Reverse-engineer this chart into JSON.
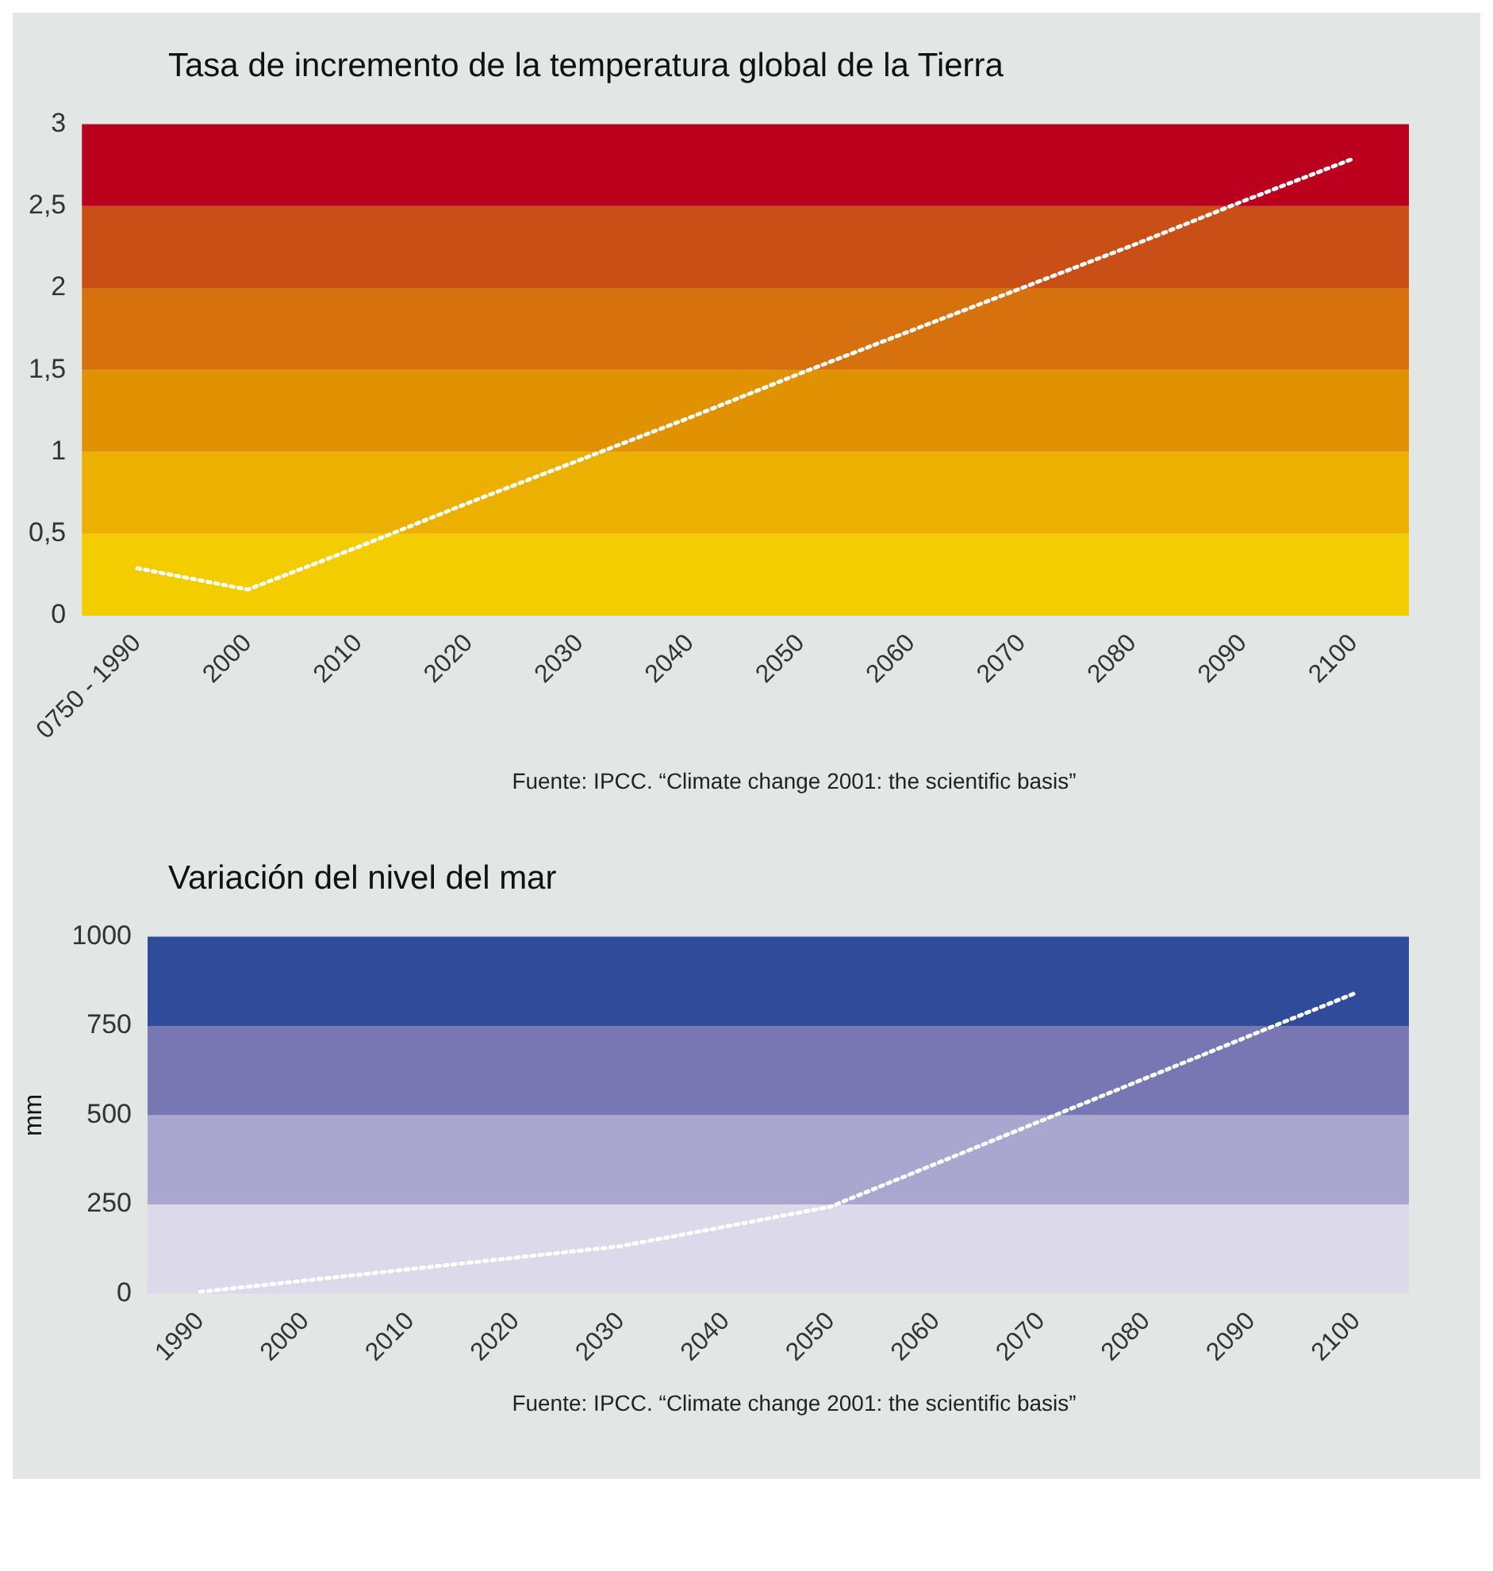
{
  "chart_data": [
    {
      "type": "line",
      "title": "Tasa de incremento de la temperatura global de la Tierra",
      "categories": [
        "0750 - 1990",
        "2000",
        "2010",
        "2020",
        "2030",
        "2040",
        "2050",
        "2060",
        "2070",
        "2080",
        "2090",
        "2100"
      ],
      "series": [
        {
          "color": "#ffffff",
          "values": [
            0.29,
            0.16,
            0.42,
            0.69,
            0.95,
            1.21,
            1.48,
            1.74,
            2.0,
            2.26,
            2.53,
            2.79
          ]
        }
      ],
      "ylim": [
        0,
        3
      ],
      "yticks": [
        0,
        {
          "value": 0.5,
          "label": "0,5"
        },
        1,
        {
          "value": 1.5,
          "label": "1,5"
        },
        2,
        {
          "value": 2.5,
          "label": "2,5"
        },
        3
      ],
      "bands": [
        {
          "axis": "y",
          "from": 0,
          "to": 0.5,
          "color": "#f4cd00"
        },
        {
          "axis": "y",
          "from": 0.5,
          "to": 1,
          "color": "#ebb000"
        },
        {
          "axis": "y",
          "from": 1,
          "to": 1.5,
          "color": "#e09200"
        },
        {
          "axis": "y",
          "from": 1.5,
          "to": 2,
          "color": "#d6720e"
        },
        {
          "axis": "y",
          "from": 2,
          "to": 2.5,
          "color": "#c94f17"
        },
        {
          "axis": "y",
          "from": 2.5,
          "to": 3,
          "color": "#bb001e"
        }
      ],
      "grid": false,
      "legend": false,
      "marker": "none",
      "line_style": "dotted",
      "annotations": [
        "Fuente: IPCC. “Climate change 2001: the scientific basis”"
      ]
    },
    {
      "type": "line",
      "title": "Variación del nivel del mar",
      "ylabel": "mm",
      "categories": [
        "1990",
        "2000",
        "2010",
        "2020",
        "2030",
        "2040",
        "2050",
        "2060",
        "2070",
        "2080",
        "2090",
        "2100"
      ],
      "series": [
        {
          "color": "#ffffff",
          "values": [
            5,
            37,
            69,
            101,
            133,
            188,
            244,
            364,
            484,
            604,
            724,
            843
          ]
        }
      ],
      "ylim": [
        0,
        1000
      ],
      "yticks": [
        0,
        250,
        500,
        750,
        1000
      ],
      "bands": [
        {
          "axis": "y",
          "from": 0,
          "to": 250,
          "color": "#dcd9ea"
        },
        {
          "axis": "y",
          "from": 250,
          "to": 500,
          "color": "#a9a7cf"
        },
        {
          "axis": "y",
          "from": 500,
          "to": 750,
          "color": "#7777b4"
        },
        {
          "axis": "y",
          "from": 750,
          "to": 1000,
          "color": "#2f4b9a"
        }
      ],
      "grid": false,
      "legend": false,
      "marker": "none",
      "line_style": "dotted",
      "annotations": [
        "Fuente: IPCC. “Climate change 2001: the scientific basis”"
      ]
    }
  ]
}
